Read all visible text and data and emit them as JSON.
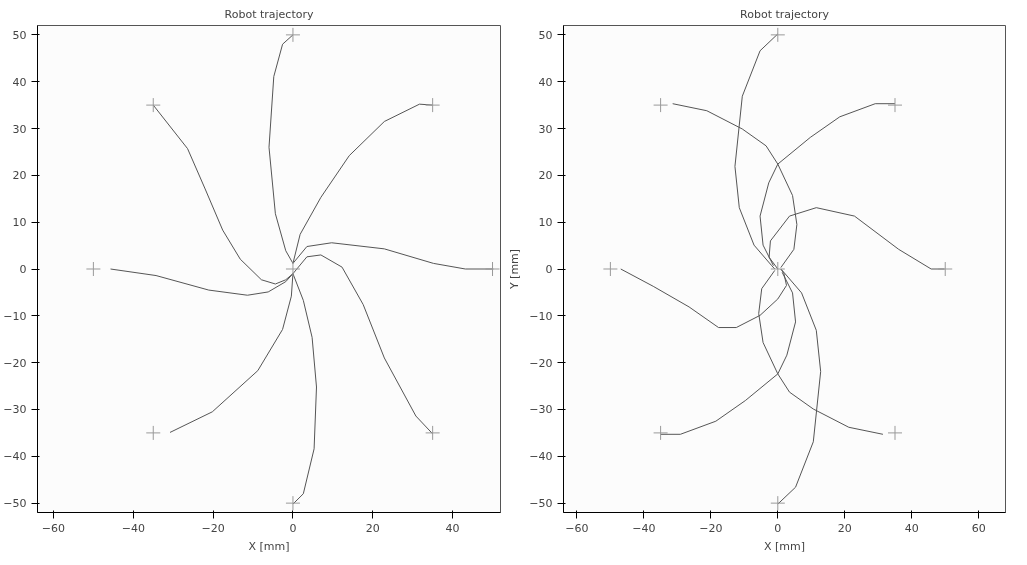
{
  "chart_data": [
    {
      "type": "line",
      "title": "Robot trajectory",
      "xlabel": "X [mm]",
      "xlim": [
        -64,
        52
      ],
      "ylim": [
        -52,
        52
      ],
      "xticks": [
        -60,
        -40,
        -20,
        0,
        20,
        40
      ],
      "yticks": [
        -50,
        -40,
        -30,
        -20,
        -10,
        0,
        10,
        20,
        30,
        40,
        50
      ],
      "grid": false,
      "line_style": "solid",
      "series": [
        {
          "color": "#555555",
          "x": [
            -35,
            -26.4,
            -22,
            -17.6,
            -13.2,
            -7.9,
            -4.4,
            -1.8,
            0
          ],
          "values": [
            35,
            25.7,
            17.1,
            8.3,
            2.1,
            -2.3,
            -3.2,
            -2.3,
            -1
          ]
        },
        {
          "color": "#555555",
          "x": [
            -45.7,
            -34.3,
            -21.1,
            -11.4,
            -6.2,
            -1.8,
            0
          ],
          "values": [
            0,
            -1.4,
            -4.5,
            -5.6,
            -4.9,
            -2.7,
            -1
          ]
        },
        {
          "color": "#555555",
          "x": [
            -30.8,
            -20.2,
            -8.8,
            -2.6,
            -0.4,
            0
          ],
          "values": [
            -34.9,
            -30.5,
            -21.7,
            -12.9,
            -5.8,
            -1
          ]
        },
        {
          "color": "#555555",
          "x": [
            0,
            -2.6,
            -4.8,
            -6,
            -4.4,
            -1.8,
            0
          ],
          "values": [
            50,
            48,
            41.1,
            26,
            11.8,
            3.9,
            1.2
          ]
        },
        {
          "color": "#555555",
          "x": [
            35,
            31.7,
            22.9,
            14.1,
            7,
            1.8,
            0
          ],
          "values": [
            35,
            35.2,
            31.5,
            24.2,
            15.3,
            7.4,
            1.2
          ]
        },
        {
          "color": "#555555",
          "x": [
            50.2,
            43.2,
            35.2,
            22.9,
            9.7,
            3.5,
            0
          ],
          "values": [
            0,
            0,
            1.2,
            4.3,
            5.6,
            4.8,
            1.2
          ]
        },
        {
          "color": "#555555",
          "x": [
            35,
            30.8,
            22.9,
            17.6,
            12.3,
            7,
            3.5,
            0
          ],
          "values": [
            -35.2,
            -31.4,
            -19,
            -7.6,
            0.4,
            3,
            2.6,
            -1
          ]
        },
        {
          "color": "#555555",
          "x": [
            0,
            2.6,
            5.3,
            5.9,
            4.8,
            2.6,
            0
          ],
          "values": [
            -50.2,
            -48,
            -38.4,
            -25.2,
            -14.6,
            -6.7,
            -1
          ]
        },
        {
          "type": "scatter",
          "marker": "cross",
          "color": "#999999",
          "x": [
            -35,
            -50,
            -35,
            0,
            35,
            50,
            35,
            0,
            0
          ],
          "values": [
            35,
            0,
            -35,
            50,
            35,
            0,
            -35,
            -50,
            0
          ]
        }
      ]
    },
    {
      "type": "line",
      "title": "Robot trajectory",
      "xlabel": "X [mm]",
      "ylabel": "Y [mm]",
      "xlim": [
        -64,
        68
      ],
      "ylim": [
        -52,
        52
      ],
      "xticks": [
        -60,
        -40,
        -20,
        0,
        20,
        40,
        60
      ],
      "yticks": [
        -50,
        -40,
        -30,
        -20,
        -10,
        0,
        10,
        20,
        30,
        40,
        50
      ],
      "grid": false,
      "line_style": "solid",
      "series": [
        {
          "color": "#555555",
          "x": [
            -31.4,
            -21.2,
            -10.6,
            -3.5,
            0,
            4.4,
            5.7,
            4.8,
            0.9
          ],
          "values": [
            35.3,
            33.8,
            29.9,
            26.3,
            22.4,
            15.7,
            9.5,
            4.2,
            0.3
          ]
        },
        {
          "color": "#555555",
          "x": [
            0,
            -5.3,
            -10.6,
            -12.8,
            -11.5,
            -7.1,
            -1.8,
            -0.9
          ],
          "values": [
            50.2,
            46.6,
            36.9,
            21.9,
            13.1,
            5.1,
            0.7,
            0
          ]
        },
        {
          "color": "#555555",
          "x": [
            35,
            29.1,
            18.5,
            9.7,
            0,
            -2.7,
            -5.3,
            -4.4,
            -1.3
          ],
          "values": [
            35.3,
            35.3,
            32.5,
            28.1,
            22.4,
            18.4,
            11.3,
            5.1,
            0.7
          ]
        },
        {
          "color": "#555555",
          "x": [
            49.8,
            45.8,
            36.1,
            22.9,
            11.5,
            3.5,
            -2.2,
            -2.6,
            0
          ],
          "values": [
            0,
            0,
            4.2,
            11.3,
            13.1,
            11.3,
            6,
            2.5,
            0
          ]
        },
        {
          "color": "#555555",
          "x": [
            -46.9,
            -37.2,
            -26.5,
            -17.7,
            -12.4,
            -5.3,
            0,
            2.6,
            1.8,
            0.9
          ],
          "values": [
            0,
            -3.7,
            -8.1,
            -12.5,
            -12.5,
            -9.9,
            -6.4,
            -3.5,
            -0.9,
            0
          ]
        },
        {
          "color": "#555555",
          "x": [
            -35,
            -29.1,
            -18.5,
            -9.7,
            0,
            2.7,
            5.3,
            4.4,
            1.3
          ],
          "values": [
            -35.3,
            -35.3,
            -32.5,
            -28.1,
            -22.4,
            -18.4,
            -11.3,
            -5.1,
            -0.7
          ]
        },
        {
          "color": "#555555",
          "x": [
            31.4,
            21.2,
            10.6,
            3.5,
            0,
            -4.4,
            -5.7,
            -4.8,
            -0.9
          ],
          "values": [
            -35.3,
            -33.8,
            -29.9,
            -26.3,
            -22.4,
            -15.7,
            -9.5,
            -4.2,
            -0.3
          ]
        },
        {
          "color": "#555555",
          "x": [
            0,
            5.3,
            10.6,
            12.8,
            11.5,
            7.1,
            1.8,
            0.9
          ],
          "values": [
            -50.2,
            -46.6,
            -36.9,
            -21.9,
            -13.1,
            -5.1,
            -0.7,
            0
          ]
        },
        {
          "type": "scatter",
          "marker": "cross",
          "color": "#999999",
          "x": [
            -35,
            -50,
            -35,
            0,
            35,
            50,
            35,
            0,
            0
          ],
          "values": [
            35,
            0,
            -35,
            50,
            35,
            0,
            -35,
            -50,
            0
          ]
        }
      ]
    }
  ]
}
